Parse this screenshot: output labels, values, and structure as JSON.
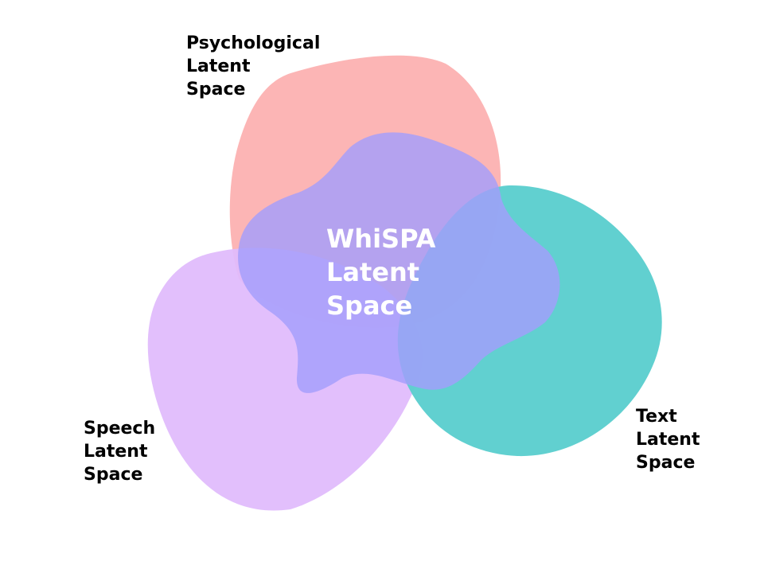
{
  "diagram": {
    "labels": {
      "psychological": [
        "Psychological",
        "Latent",
        "Space"
      ],
      "speech": [
        "Speech",
        "Latent",
        "Space"
      ],
      "text": [
        "Text",
        "Latent",
        "Space"
      ],
      "center": [
        "WhiSPA",
        "Latent",
        "Space"
      ]
    },
    "colors": {
      "psychological": "#fcb5b5",
      "speech": "#e0bcfc",
      "text": "#5ccece",
      "center": "#a39dfb",
      "label_text": "#000000",
      "center_text": "#ffffff"
    }
  }
}
